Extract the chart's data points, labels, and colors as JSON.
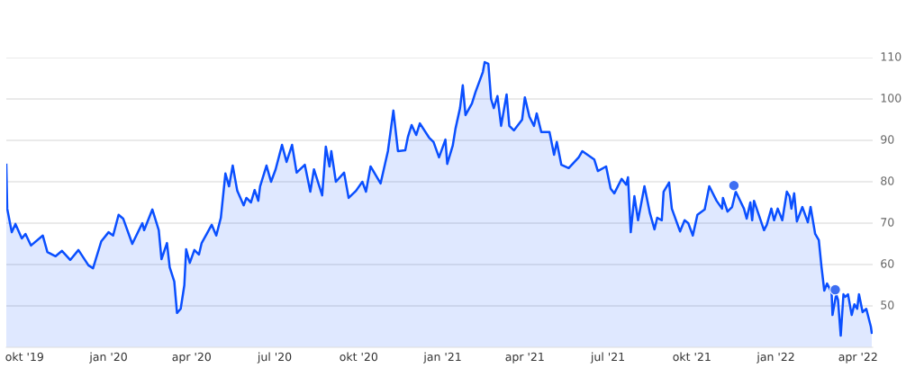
{
  "chart_data": {
    "type": "area",
    "xlim": [
      "2019-09-11",
      "2022-04-17"
    ],
    "ylim": [
      40,
      110
    ],
    "yticks": [
      50,
      60,
      70,
      80,
      90,
      100,
      110
    ],
    "xticks": [
      {
        "value": "2019-10-01",
        "label": "okt '19"
      },
      {
        "value": "2020-01-01",
        "label": "jan '20"
      },
      {
        "value": "2020-04-01",
        "label": "apr '20"
      },
      {
        "value": "2020-07-01",
        "label": "jul '20"
      },
      {
        "value": "2020-10-01",
        "label": "okt '20"
      },
      {
        "value": "2021-01-01",
        "label": "jan '21"
      },
      {
        "value": "2021-04-01",
        "label": "apr '21"
      },
      {
        "value": "2021-07-01",
        "label": "jul '21"
      },
      {
        "value": "2021-10-01",
        "label": "okt '21"
      },
      {
        "value": "2022-01-01",
        "label": "jan '22"
      },
      {
        "value": "2022-04-01",
        "label": "apr '22"
      }
    ],
    "grid": "y",
    "legend": false,
    "series": [
      {
        "color": "#0a4fff",
        "x": [
          "2019-09-11",
          "2019-09-12",
          "2019-09-17",
          "2019-09-21",
          "2019-09-28",
          "2019-10-02",
          "2019-10-08",
          "2019-10-21",
          "2019-10-26",
          "2019-11-04",
          "2019-11-11",
          "2019-11-20",
          "2019-11-29",
          "2019-12-10",
          "2019-12-15",
          "2019-12-24",
          "2020-01-01",
          "2020-01-06",
          "2020-01-12",
          "2020-01-17",
          "2020-01-27",
          "2020-02-07",
          "2020-02-09",
          "2020-02-18",
          "2020-02-25",
          "2020-02-28",
          "2020-03-05",
          "2020-03-08",
          "2020-03-13",
          "2020-03-16",
          "2020-03-20",
          "2020-03-24",
          "2020-03-26",
          "2020-03-30",
          "2020-04-04",
          "2020-04-09",
          "2020-04-12",
          "2020-04-18",
          "2020-04-23",
          "2020-04-28",
          "2020-05-03",
          "2020-05-08",
          "2020-05-12",
          "2020-05-16",
          "2020-05-21",
          "2020-05-28",
          "2020-05-31",
          "2020-06-05",
          "2020-06-09",
          "2020-06-13",
          "2020-06-15",
          "2020-06-22",
          "2020-06-27",
          "2020-07-02",
          "2020-07-09",
          "2020-07-14",
          "2020-07-20",
          "2020-07-25",
          "2020-08-03",
          "2020-08-09",
          "2020-08-13",
          "2020-08-22",
          "2020-08-26",
          "2020-08-30",
          "2020-09-01",
          "2020-09-06",
          "2020-09-15",
          "2020-09-20",
          "2020-09-28",
          "2020-10-05",
          "2020-10-09",
          "2020-10-14",
          "2020-10-25",
          "2020-11-02",
          "2020-11-08",
          "2020-11-13",
          "2020-11-21",
          "2020-11-24",
          "2020-11-28",
          "2020-12-03",
          "2020-12-07",
          "2020-12-17",
          "2020-12-22",
          "2020-12-28",
          "2021-01-04",
          "2021-01-06",
          "2021-01-12",
          "2021-01-15",
          "2021-01-20",
          "2021-01-23",
          "2021-01-26",
          "2021-02-02",
          "2021-02-06",
          "2021-02-14",
          "2021-02-16",
          "2021-02-20",
          "2021-02-23",
          "2021-02-26",
          "2021-03-02",
          "2021-03-06",
          "2021-03-12",
          "2021-03-15",
          "2021-03-20",
          "2021-03-29",
          "2021-04-01",
          "2021-04-06",
          "2021-04-11",
          "2021-04-14",
          "2021-04-19",
          "2021-04-28",
          "2021-05-03",
          "2021-05-06",
          "2021-05-11",
          "2021-05-19",
          "2021-05-30",
          "2021-06-03",
          "2021-06-16",
          "2021-06-20",
          "2021-06-29",
          "2021-07-04",
          "2021-07-08",
          "2021-07-16",
          "2021-07-21",
          "2021-07-23",
          "2021-07-26",
          "2021-07-30",
          "2021-08-03",
          "2021-08-10",
          "2021-08-16",
          "2021-08-21",
          "2021-08-24",
          "2021-08-29",
          "2021-08-31",
          "2021-09-06",
          "2021-09-09",
          "2021-09-18",
          "2021-09-23",
          "2021-09-27",
          "2021-10-02",
          "2021-10-07",
          "2021-10-15",
          "2021-10-20",
          "2021-10-28",
          "2021-11-03",
          "2021-11-04",
          "2021-11-09",
          "2021-11-14",
          "2021-11-18",
          "2021-11-27",
          "2021-11-30",
          "2021-12-04",
          "2021-12-06",
          "2021-12-08",
          "2021-12-19",
          "2021-12-22",
          "2021-12-27",
          "2021-12-30",
          "2022-01-03",
          "2022-01-08",
          "2022-01-13",
          "2022-01-16",
          "2022-01-18",
          "2022-01-21",
          "2022-01-24",
          "2022-01-30",
          "2022-02-05",
          "2022-02-08",
          "2022-02-13",
          "2022-02-17",
          "2022-02-20",
          "2022-02-23",
          "2022-02-26",
          "2022-03-03",
          "2022-03-04",
          "2022-03-08",
          "2022-03-10",
          "2022-03-13",
          "2022-03-16",
          "2022-03-18",
          "2022-03-21",
          "2022-03-25",
          "2022-03-28",
          "2022-03-31",
          "2022-04-02",
          "2022-04-06",
          "2022-04-10",
          "2022-04-15",
          "2022-04-16"
        ],
        "values": [
          84.1,
          73.5,
          67.8,
          69.8,
          66.3,
          67.4,
          64.6,
          67.0,
          63.0,
          62.0,
          63.3,
          61.1,
          63.5,
          59.8,
          59.1,
          65.6,
          67.8,
          67.0,
          72.0,
          71.1,
          65.0,
          70.0,
          68.3,
          73.3,
          68.3,
          61.3,
          65.2,
          59.3,
          55.9,
          48.3,
          49.3,
          55.0,
          63.7,
          60.4,
          63.5,
          62.4,
          65.2,
          67.6,
          69.6,
          67.0,
          71.3,
          82.0,
          78.9,
          83.9,
          77.8,
          74.3,
          76.1,
          75.0,
          78.0,
          75.4,
          78.9,
          83.9,
          80.0,
          83.0,
          88.9,
          84.8,
          88.9,
          82.2,
          84.1,
          77.6,
          83.0,
          76.7,
          88.5,
          83.7,
          87.4,
          80.0,
          82.2,
          76.1,
          77.8,
          80.0,
          77.6,
          83.7,
          79.6,
          87.4,
          97.2,
          87.4,
          87.6,
          90.9,
          93.7,
          91.3,
          94.1,
          90.7,
          89.6,
          85.9,
          90.2,
          84.3,
          88.7,
          92.8,
          97.8,
          103.3,
          96.1,
          98.9,
          101.7,
          106.5,
          108.9,
          108.5,
          100.0,
          97.8,
          100.7,
          93.5,
          101.1,
          93.5,
          92.4,
          95.0,
          100.4,
          95.7,
          93.5,
          96.5,
          92.0,
          92.0,
          86.5,
          89.6,
          84.1,
          83.3,
          85.9,
          87.4,
          85.4,
          82.6,
          83.7,
          78.3,
          77.2,
          80.7,
          79.3,
          81.1,
          67.8,
          76.5,
          70.7,
          78.9,
          72.4,
          68.5,
          71.3,
          70.7,
          77.6,
          79.8,
          73.5,
          68.0,
          70.7,
          70.0,
          67.0,
          72.0,
          73.3,
          78.9,
          75.4,
          73.5,
          76.1,
          72.8,
          73.9,
          77.6,
          73.5,
          71.1,
          75.0,
          70.7,
          75.4,
          68.3,
          69.6,
          73.5,
          70.7,
          73.5,
          70.7,
          77.6,
          76.5,
          73.5,
          77.2,
          70.4,
          73.9,
          70.2,
          73.9,
          67.4,
          65.9,
          59.3,
          53.7,
          55.4,
          53.3,
          47.8,
          52.8,
          51.5,
          42.8,
          52.8,
          52.2,
          52.8,
          47.8,
          50.4,
          49.3,
          52.8,
          48.5,
          49.3,
          45.0,
          43.5
        ]
      },
      {
        "type": "scatter",
        "color": "#3d6ef2",
        "marker": "circle",
        "x": [
          "2021-11-16",
          "2022-03-07"
        ],
        "values": [
          79.1,
          53.9
        ]
      }
    ]
  }
}
